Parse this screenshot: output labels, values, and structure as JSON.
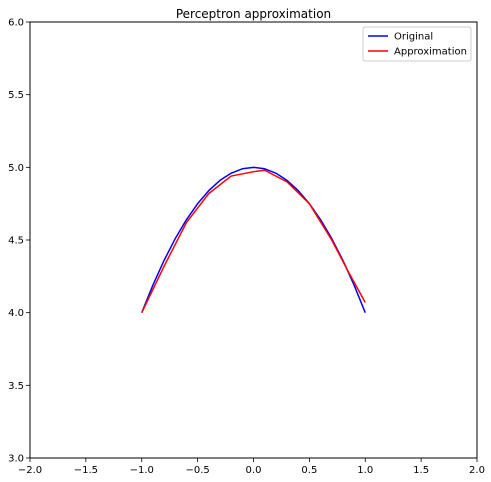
{
  "chart_data": {
    "type": "line",
    "title": "Perceptron approximation",
    "xlabel": "",
    "ylabel": "",
    "xlim": [
      -2.0,
      2.0
    ],
    "ylim": [
      3.0,
      6.0
    ],
    "x_ticks": [
      -2.0,
      -1.5,
      -1.0,
      -0.5,
      0.0,
      0.5,
      1.0,
      1.5,
      2.0
    ],
    "x_tick_labels": [
      "−2.0",
      "−1.5",
      "−1.0",
      "−0.5",
      "0.0",
      "0.5",
      "1.0",
      "1.5",
      "2.0"
    ],
    "y_ticks": [
      3.0,
      3.5,
      4.0,
      4.5,
      5.0,
      5.5,
      6.0
    ],
    "y_tick_labels": [
      "3.0",
      "3.5",
      "4.0",
      "4.5",
      "5.0",
      "5.5",
      "6.0"
    ],
    "grid": false,
    "legend_position": "top-right",
    "series": [
      {
        "name": "Original",
        "color": "#0000ff",
        "x": [
          -1.0,
          -0.9,
          -0.8,
          -0.7,
          -0.6,
          -0.5,
          -0.4,
          -0.3,
          -0.2,
          -0.1,
          0.0,
          0.1,
          0.2,
          0.3,
          0.4,
          0.5,
          0.6,
          0.7,
          0.8,
          0.9,
          1.0
        ],
        "y": [
          4.0,
          4.19,
          4.36,
          4.51,
          4.64,
          4.75,
          4.84,
          4.91,
          4.96,
          4.99,
          5.0,
          4.99,
          4.96,
          4.91,
          4.84,
          4.75,
          4.64,
          4.51,
          4.36,
          4.19,
          4.0
        ]
      },
      {
        "name": "Approximation",
        "color": "#ff0000",
        "x": [
          -1.0,
          -0.8,
          -0.6,
          -0.4,
          -0.2,
          0.0,
          0.1,
          0.3,
          0.5,
          0.7,
          0.85,
          1.0
        ],
        "y": [
          4.0,
          4.32,
          4.62,
          4.82,
          4.94,
          4.97,
          4.98,
          4.9,
          4.75,
          4.5,
          4.28,
          4.07
        ]
      }
    ]
  }
}
